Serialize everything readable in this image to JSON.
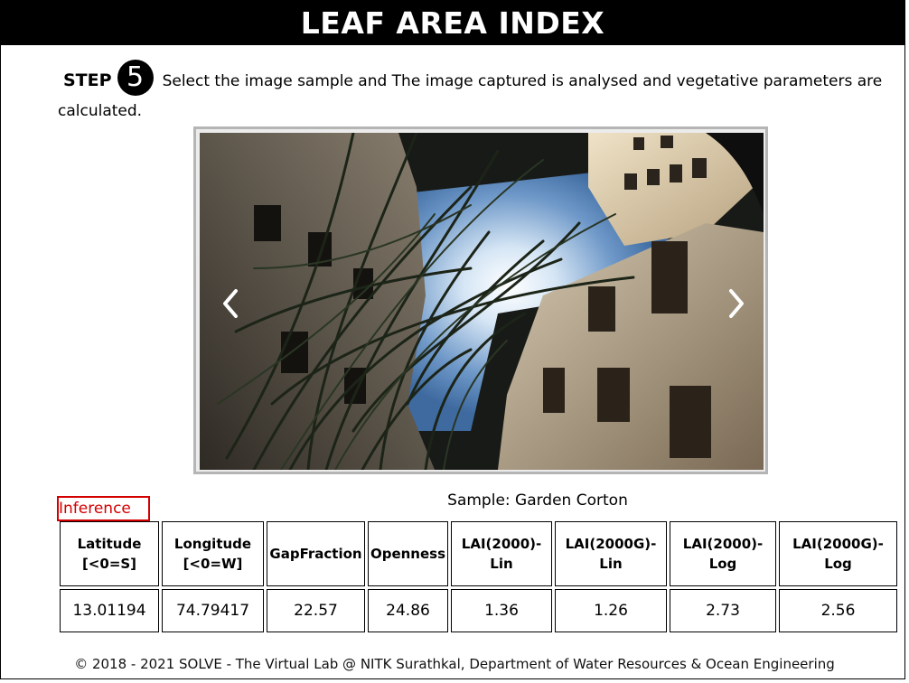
{
  "header": {
    "title": "LEAF AREA INDEX"
  },
  "step": {
    "label": "STEP",
    "number": "5",
    "instruction": "Select the image sample and The image captured is analysed and vegetative parameters are calculated."
  },
  "carousel": {
    "prev_icon": "chevron-left-icon",
    "next_icon": "chevron-right-icon"
  },
  "inference_label": "Inference",
  "sample_label": "Sample: Garden Corton",
  "table": {
    "headers": [
      {
        "line1": "Latitude",
        "line2": "[<0=S]"
      },
      {
        "line1": "Longitude",
        "line2": "[<0=W]"
      },
      {
        "line1": "GapFraction",
        "line2": ""
      },
      {
        "line1": "Openness",
        "line2": ""
      },
      {
        "line1": "LAI(2000)-",
        "line2": "Lin"
      },
      {
        "line1": "LAI(2000G)-",
        "line2": "Lin"
      },
      {
        "line1": "LAI(2000)-",
        "line2": "Log"
      },
      {
        "line1": "LAI(2000G)-",
        "line2": "Log"
      }
    ],
    "values": [
      "13.01194",
      "74.79417",
      "22.57",
      "24.86",
      "1.36",
      "1.26",
      "2.73",
      "2.56"
    ]
  },
  "footer": "© 2018 - 2021 SOLVE - The Virtual Lab @ NITK Surathkal, Department of Water Resources & Ocean Engineering"
}
